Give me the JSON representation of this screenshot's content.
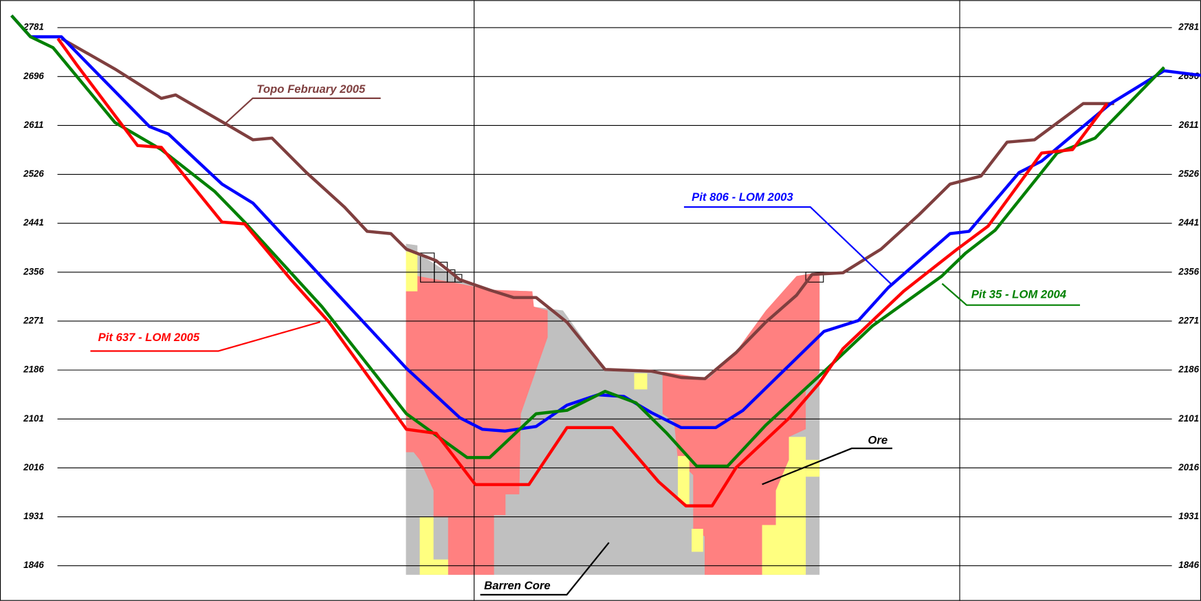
{
  "chart_data": {
    "type": "line",
    "ylim": [
      1785,
      2818
    ],
    "yticks": [
      1846,
      1931,
      2016,
      2101,
      2186,
      2271,
      2356,
      2441,
      2526,
      2611,
      2696,
      2781
    ],
    "xlim": [
      0,
      100
    ],
    "grid": true,
    "annotations": [
      "Topo February 2005",
      "Pit 806 - LOM 2003",
      "Pit 35 - LOM 2004",
      "Pit 637 - LOM 2005",
      "Ore",
      "Barren Core"
    ],
    "series": [
      {
        "name": "Topo February 2005",
        "color": "#7f3f3f",
        "x": [
          4.2,
          8.7,
          12.6,
          13.8,
          18.4,
          20.3,
          21.9,
          24.8,
          28.0,
          29.9,
          31.9,
          33.2,
          35.7,
          37.7,
          40.2,
          42.2,
          44.1,
          46.7,
          49.9,
          53.8,
          56.3,
          58.3,
          60.9,
          63.4,
          66.0,
          67.3,
          69.9,
          73.1,
          76.3,
          78.9,
          81.5,
          83.7,
          86.0,
          90.1,
          92.7
        ],
        "values": [
          2762,
          2709,
          2658,
          2664,
          2609,
          2586,
          2589,
          2529,
          2469,
          2427,
          2423,
          2396,
          2376,
          2343,
          2325,
          2312,
          2312,
          2269,
          2187,
          2184,
          2173,
          2171,
          2216,
          2269,
          2316,
          2352,
          2355,
          2396,
          2456,
          2509,
          2523,
          2582,
          2586,
          2649,
          2649
        ]
      },
      {
        "name": "Pit 806 - LOM 2003",
        "color": "#0000ff",
        "x": [
          0,
          1.6,
          4.2,
          11.6,
          13.2,
          17.7,
          20.3,
          33.2,
          37.7,
          39.6,
          41.5,
          44.1,
          46.7,
          49.3,
          51.5,
          53.8,
          56.3,
          59.2,
          61.5,
          68.3,
          71.2,
          73.7,
          78.9,
          80.5,
          84.7,
          86.6,
          92.4,
          96.9,
          100
        ],
        "values": [
          2802,
          2765,
          2765,
          2609,
          2596,
          2509,
          2476,
          2189,
          2103,
          2083,
          2080,
          2088,
          2125,
          2143,
          2140,
          2112,
          2086,
          2086,
          2116,
          2253,
          2272,
          2329,
          2423,
          2427,
          2529,
          2549,
          2649,
          2706,
          2698
        ]
      },
      {
        "name": "Pit 35 - LOM 2004",
        "color": "#008000",
        "x": [
          0,
          1.6,
          3.5,
          8.7,
          12.6,
          17.1,
          19.6,
          26.1,
          33.2,
          38.3,
          40.2,
          44.1,
          46.7,
          49.9,
          52.5,
          55.1,
          57.6,
          60.2,
          63.4,
          68.6,
          72.4,
          78.2,
          80.2,
          82.7,
          87.9,
          91.1,
          96.9
        ],
        "values": [
          2802,
          2765,
          2746,
          2616,
          2569,
          2496,
          2443,
          2296,
          2110,
          2034,
          2034,
          2110,
          2116,
          2149,
          2129,
          2076,
          2019,
          2019,
          2090,
          2189,
          2263,
          2349,
          2389,
          2429,
          2563,
          2589,
          2712
        ]
      },
      {
        "name": "Pit 637 - LOM 2005",
        "color": "#ff0000",
        "x": [
          3.9,
          5.5,
          10.6,
          12.6,
          17.7,
          19.6,
          23.5,
          26.7,
          33.2,
          35.7,
          39.0,
          43.5,
          46.7,
          50.5,
          54.4,
          56.7,
          58.9,
          60.9,
          65.4,
          67.9,
          69.9,
          75.0,
          79.5,
          82.1,
          86.6,
          89.2,
          92.1
        ],
        "values": [
          2762,
          2716,
          2576,
          2573,
          2443,
          2440,
          2343,
          2269,
          2083,
          2076,
          1987,
          1987,
          2086,
          2086,
          1992,
          1950,
          1950,
          2016,
          2103,
          2163,
          2223,
          2323,
          2396,
          2436,
          2563,
          2569,
          2649
        ]
      }
    ]
  }
}
